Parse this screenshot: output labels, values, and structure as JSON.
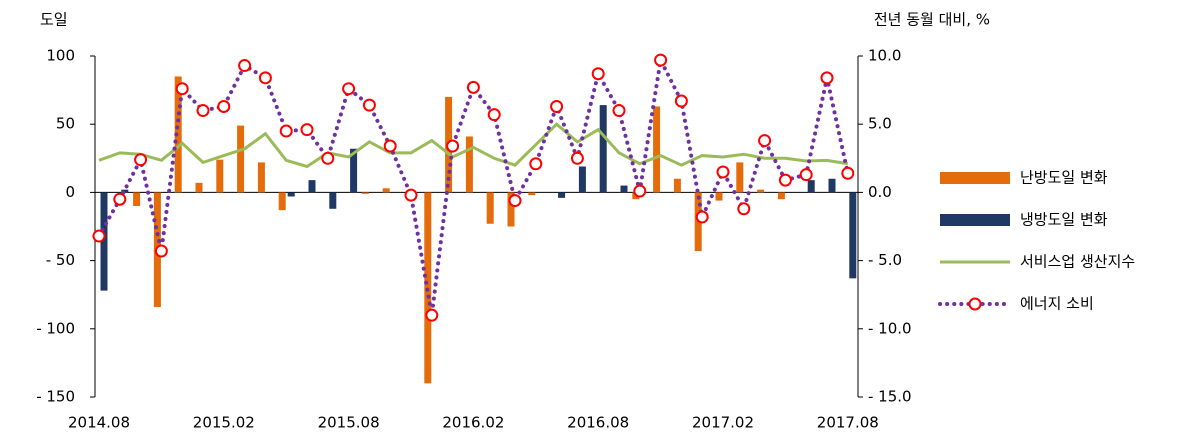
{
  "chart_data": {
    "type": "bar-line",
    "ylabel": "도일",
    "y2label": "전년 동월 대비, %",
    "categories": [
      "2014.08",
      null,
      null,
      null,
      null,
      null,
      "2015.02",
      null,
      null,
      null,
      null,
      null,
      "2015.08",
      null,
      null,
      null,
      null,
      null,
      "2016.02",
      null,
      null,
      null,
      null,
      null,
      "2016.08",
      null,
      null,
      null,
      null,
      null,
      "2017.02",
      null,
      null,
      null,
      null,
      null,
      "2017.08"
    ],
    "series": [
      {
        "name": "난방도일 변화",
        "type": "bar",
        "axis": "y",
        "color": "#e46c0a",
        "values": [
          0,
          0,
          -10,
          -84,
          85,
          7,
          24,
          49,
          22,
          -13,
          0,
          0,
          0,
          -1,
          3,
          0,
          -140,
          70,
          41,
          -23,
          -25,
          -2,
          0,
          0,
          0,
          0,
          -5,
          63,
          10,
          -43,
          -6,
          22,
          2,
          -5,
          0,
          0,
          0
        ]
      },
      {
        "name": "냉방도일 변화",
        "type": "bar",
        "axis": "y",
        "color": "#1f3864",
        "values": [
          -72,
          2,
          0,
          0,
          0,
          0,
          0,
          0,
          0,
          -3,
          9,
          -12,
          32,
          0,
          0,
          0,
          0,
          0,
          0,
          0,
          0,
          0,
          -4,
          19,
          64,
          5,
          0,
          0,
          0,
          0,
          0,
          0,
          0,
          0,
          9,
          10,
          -63
        ]
      },
      {
        "name": "서비스업 생산지수",
        "type": "line",
        "axis": "y2",
        "color": "#9bbb59",
        "values": [
          2.35,
          2.9,
          2.8,
          2.35,
          3.6,
          2.2,
          2.7,
          3.2,
          4.3,
          2.35,
          1.9,
          2.9,
          2.6,
          3.7,
          2.9,
          2.9,
          3.8,
          2.6,
          3.3,
          2.5,
          2.0,
          3.5,
          5.0,
          3.7,
          4.6,
          2.9,
          2.1,
          2.7,
          2.0,
          2.7,
          2.6,
          2.8,
          2.5,
          2.5,
          2.3,
          2.35,
          2.1
        ]
      },
      {
        "name": "에너지 소비",
        "type": "dotted-line",
        "axis": "y2",
        "color": "#7030a0",
        "marker_color": "#ff0000",
        "values": [
          -3.2,
          -0.5,
          2.4,
          -4.3,
          7.6,
          6.0,
          6.3,
          9.3,
          8.4,
          4.5,
          4.6,
          2.5,
          7.6,
          6.4,
          3.4,
          -0.2,
          -9.0,
          3.4,
          7.7,
          5.7,
          -0.6,
          2.1,
          6.3,
          2.5,
          8.7,
          6.0,
          0.1,
          9.7,
          6.7,
          -1.8,
          1.5,
          -1.2,
          3.8,
          0.9,
          1.3,
          8.4,
          1.4
        ]
      }
    ],
    "ylim": [
      -150,
      100
    ],
    "yticks": [
      {
        "value": -150,
        "label": "- 150"
      },
      {
        "value": -100,
        "label": "- 100"
      },
      {
        "value": -50,
        "label": "- 50"
      },
      0,
      50,
      100
    ],
    "y2lim": [
      -15,
      10
    ],
    "y2ticks": [
      {
        "value": -15,
        "label": "- 15.0"
      },
      {
        "value": -10,
        "label": "- 10.0"
      },
      {
        "value": -5,
        "label": "- 5.0"
      },
      {
        "value": 0,
        "label": "0.0"
      },
      {
        "value": 5,
        "label": "5.0"
      },
      {
        "value": 10,
        "label": "10.0"
      }
    ],
    "legend": "right"
  }
}
